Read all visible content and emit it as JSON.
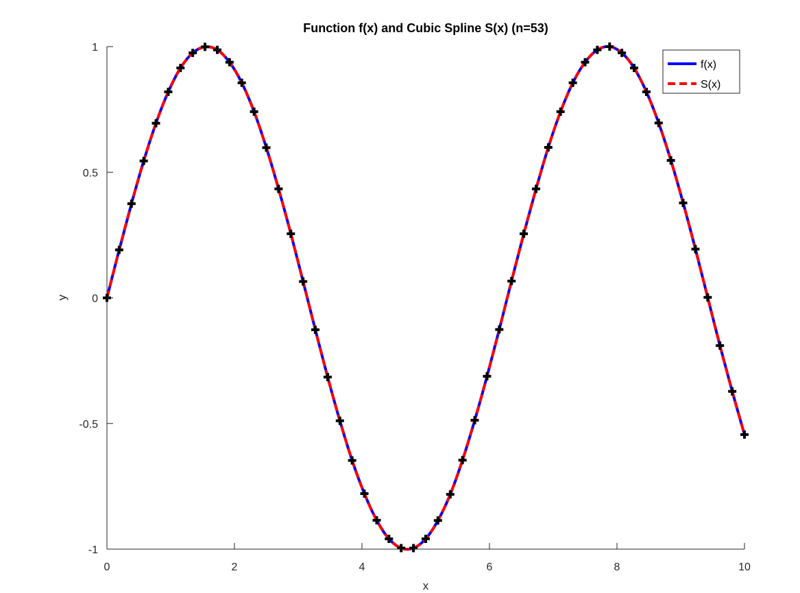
{
  "chart_data": {
    "type": "line",
    "title": "Function f(x) and Cubic Spline S(x) (n=53)",
    "xlabel": "x",
    "ylabel": "y",
    "xlim": [
      0,
      10
    ],
    "ylim": [
      -1,
      1
    ],
    "xticks": [
      0,
      2,
      4,
      6,
      8,
      10
    ],
    "yticks": [
      -1,
      -0.5,
      0,
      0.5,
      1
    ],
    "xtick_labels": [
      "0",
      "2",
      "4",
      "6",
      "8",
      "10"
    ],
    "ytick_labels": [
      "-1",
      "-0.5",
      "0",
      "0.5",
      "1"
    ],
    "grid": false,
    "legend_position": "top-right",
    "series": [
      {
        "name": "f(x)",
        "color": "#0000ff",
        "style": "solid"
      },
      {
        "name": "S(x)",
        "color": "#ff0000",
        "style": "dashed"
      }
    ],
    "sample_points": {
      "color": "#000000",
      "marker": "plus",
      "x": [
        0,
        0.192,
        0.385,
        0.577,
        0.769,
        0.962,
        1.154,
        1.346,
        1.538,
        1.731,
        1.923,
        2.115,
        2.308,
        2.5,
        2.692,
        2.885,
        3.077,
        3.269,
        3.462,
        3.654,
        3.846,
        4.038,
        4.231,
        4.423,
        4.615,
        4.808,
        5,
        5.192,
        5.385,
        5.577,
        5.769,
        5.962,
        6.154,
        6.346,
        6.538,
        6.731,
        6.923,
        7.115,
        7.308,
        7.5,
        7.692,
        7.885,
        8.077,
        8.269,
        8.462,
        8.654,
        8.846,
        9.038,
        9.231,
        9.423,
        9.615,
        9.808,
        10
      ],
      "y": [
        0,
        0.191,
        0.375,
        0.545,
        0.695,
        0.82,
        0.915,
        0.975,
        0.999,
        0.987,
        0.938,
        0.856,
        0.741,
        0.598,
        0.434,
        0.255,
        0.065,
        -0.127,
        -0.315,
        -0.489,
        -0.647,
        -0.779,
        -0.885,
        -0.959,
        -0.996,
        -0.996,
        -0.959,
        -0.886,
        -0.782,
        -0.646,
        -0.487,
        -0.312,
        -0.126,
        0.067,
        0.255,
        0.434,
        0.599,
        0.741,
        0.856,
        0.938,
        0.987,
        1.0,
        0.975,
        0.915,
        0.82,
        0.696,
        0.547,
        0.378,
        0.194,
        0.002,
        -0.19,
        -0.372,
        -0.544
      ]
    }
  }
}
